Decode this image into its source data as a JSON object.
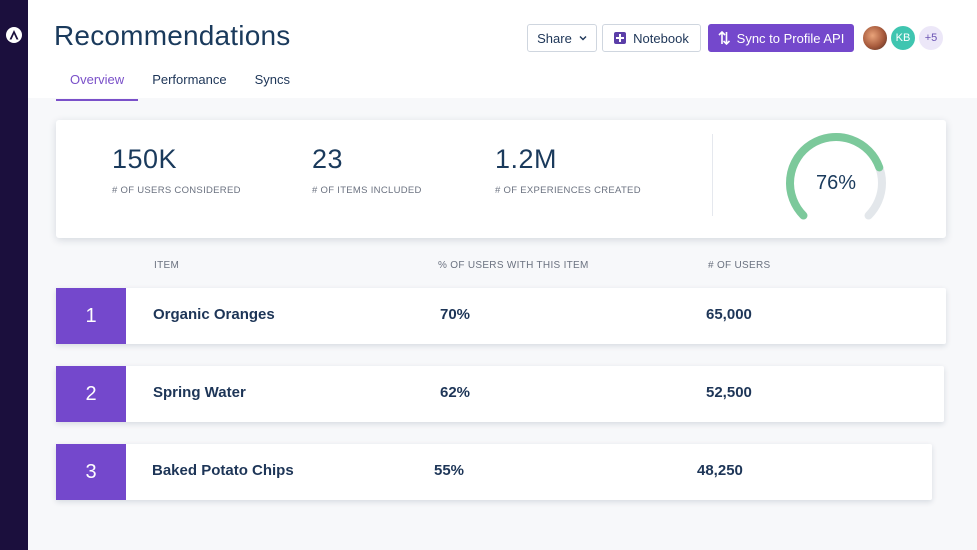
{
  "page": {
    "title": "Recommendations",
    "tabs": [
      {
        "label": "Overview",
        "active": true
      },
      {
        "label": "Performance",
        "active": false
      },
      {
        "label": "Syncs",
        "active": false
      }
    ]
  },
  "toolbar": {
    "share_label": "Share",
    "notebook_label": "Notebook",
    "sync_label": "Sync to Profile API",
    "avatar_initials": "KB",
    "avatar_more": "+5"
  },
  "stats": [
    {
      "value": "150K",
      "label": "# of users considered"
    },
    {
      "value": "23",
      "label": "# of items included"
    },
    {
      "value": "1.2M",
      "label": "# of experiences created"
    }
  ],
  "gauge": {
    "display": "76%",
    "fraction": 0.76
  },
  "table": {
    "headers": [
      "ITEM",
      "% OF USERS WITH THIS ITEM",
      "# OF USERS"
    ],
    "rows": [
      {
        "rank": "1",
        "item": "Organic Oranges",
        "pct": "70%",
        "users": "65,000"
      },
      {
        "rank": "2",
        "item": "Spring Water",
        "pct": "62%",
        "users": "52,500"
      },
      {
        "rank": "3",
        "item": "Baked Potato Chips",
        "pct": "55%",
        "users": "48,250"
      }
    ]
  },
  "colors": {
    "accent": "#7448cc",
    "gauge_fill": "#7cc99b",
    "gauge_track": "#e3e7eb",
    "rail": "#1b0f3d"
  },
  "icons": [
    "app-logo-icon",
    "chevron-down-icon",
    "notebook-icon",
    "sync-icon"
  ]
}
